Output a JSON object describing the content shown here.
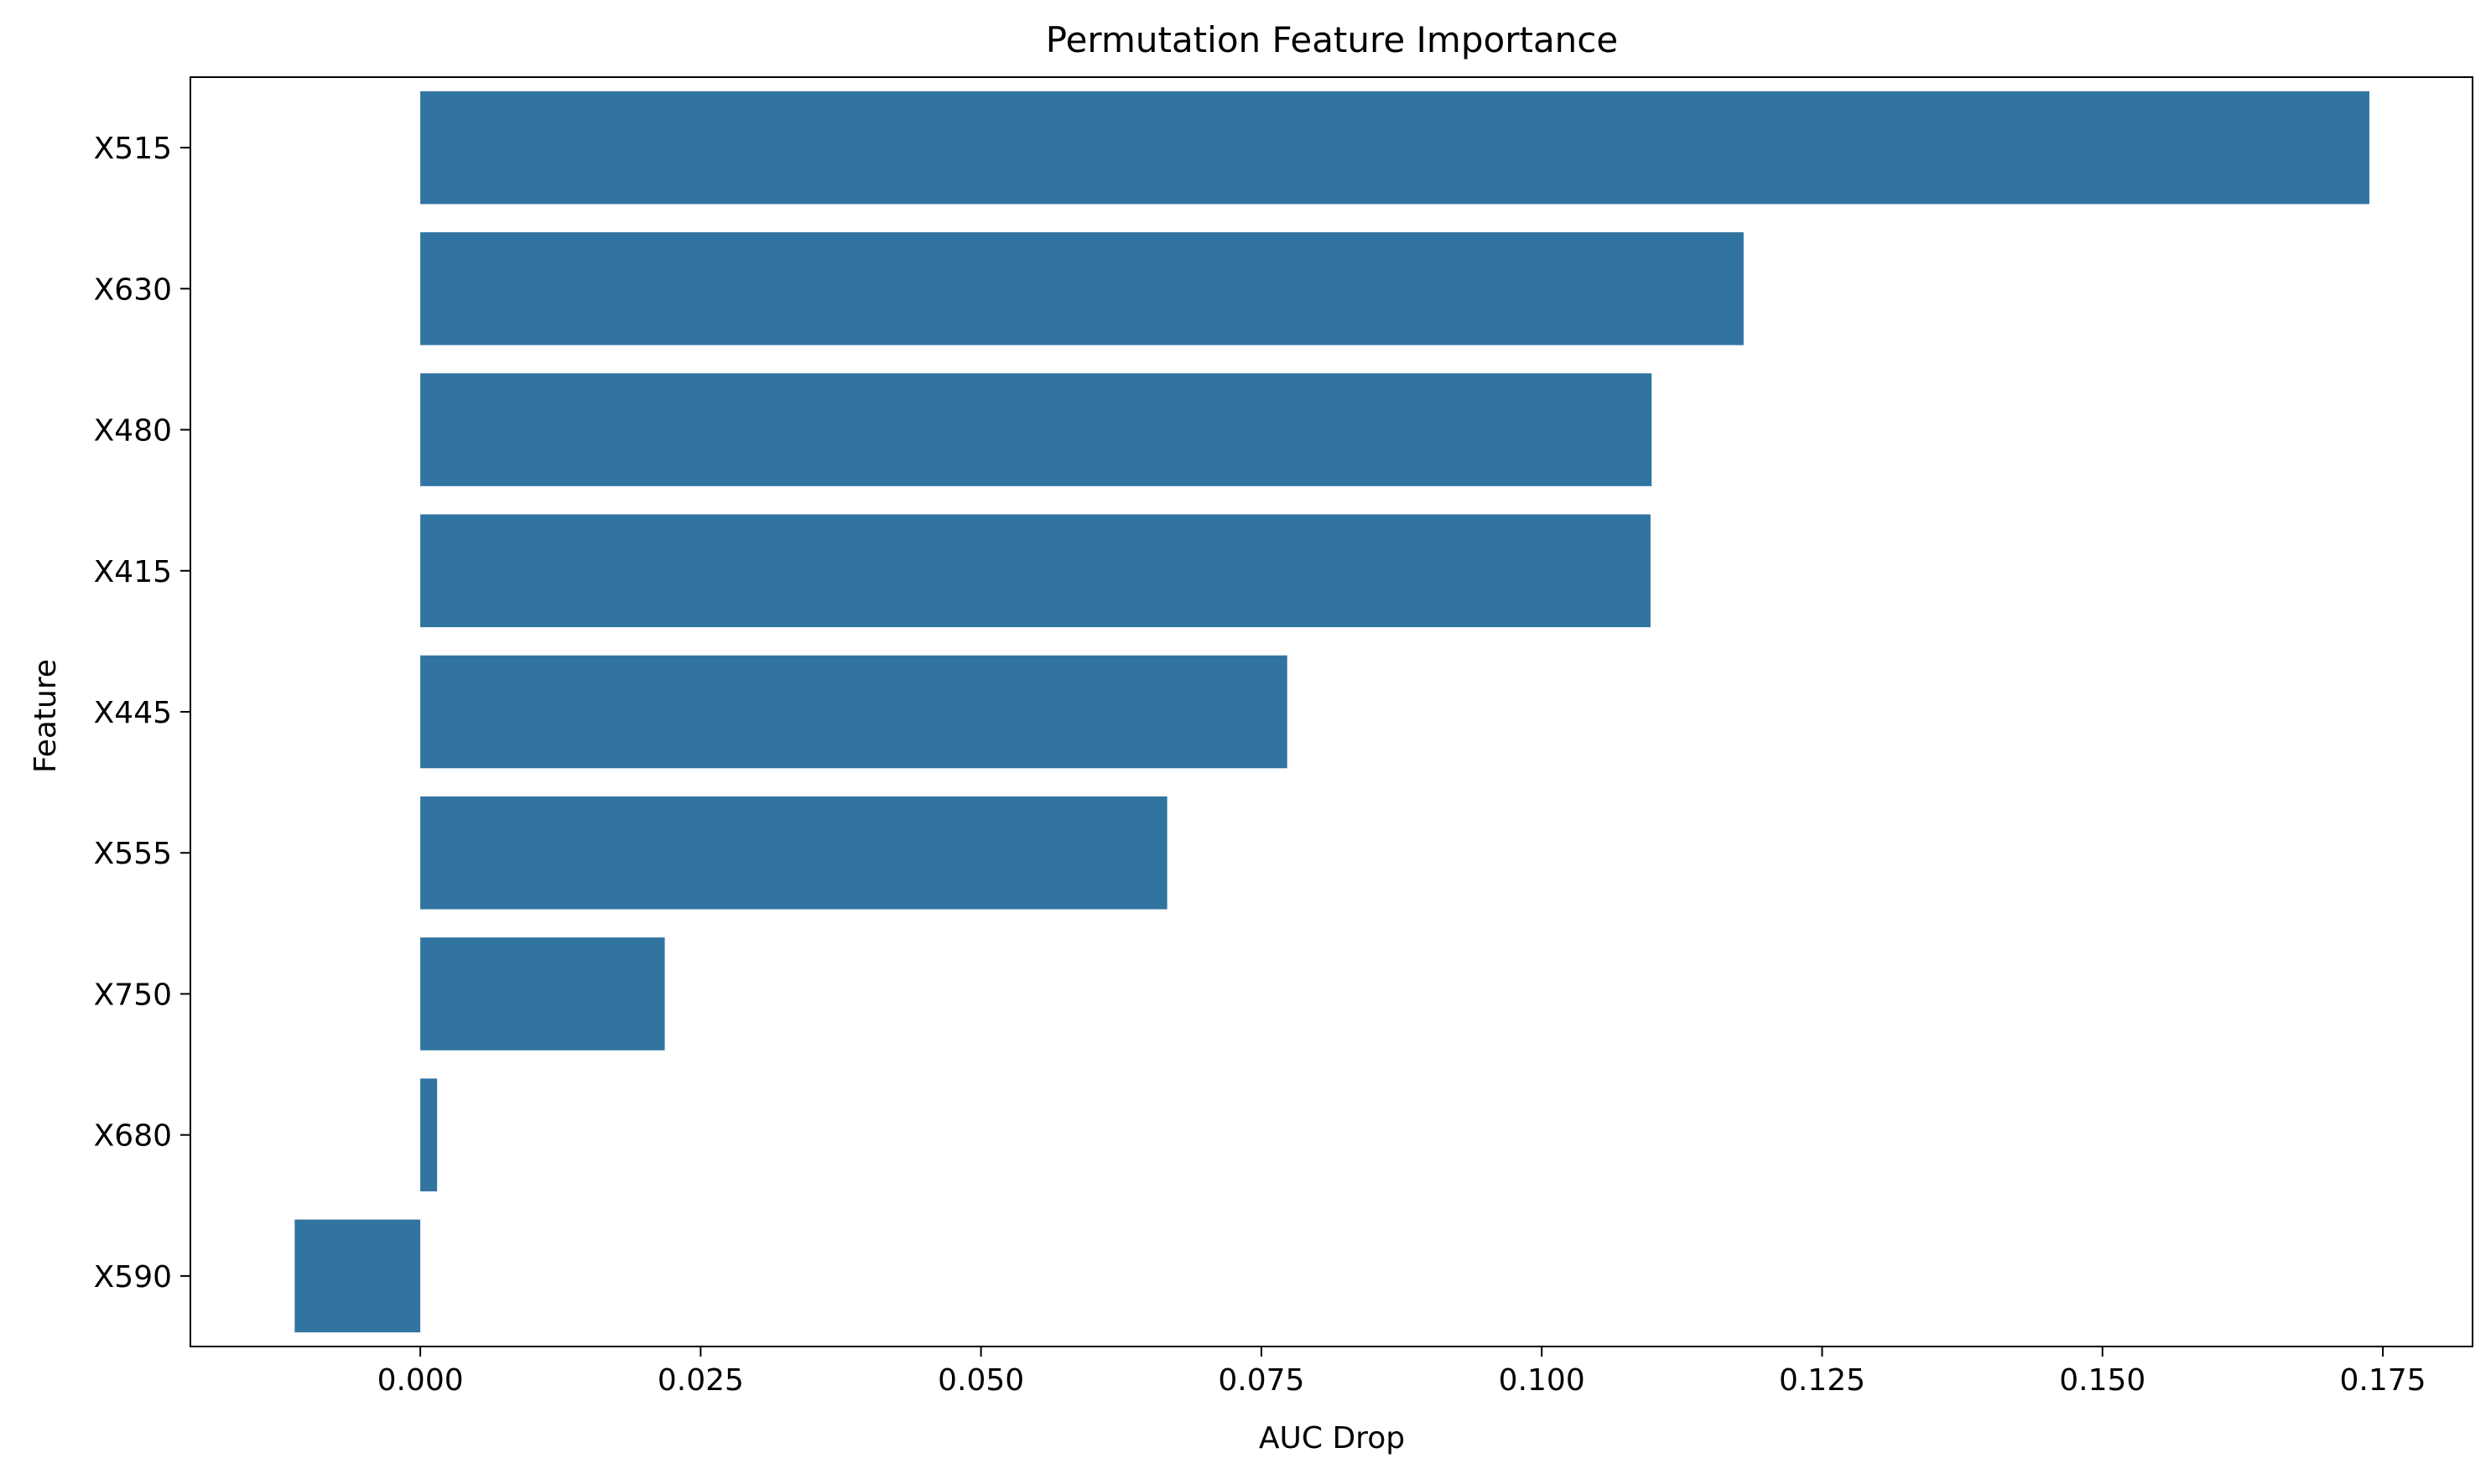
{
  "chart_data": {
    "type": "bar",
    "orientation": "horizontal",
    "title": "Permutation Feature Importance",
    "xlabel": "AUC Drop",
    "ylabel": "Feature",
    "categories": [
      "X515",
      "X630",
      "X480",
      "X415",
      "X445",
      "X555",
      "X750",
      "X680",
      "X590"
    ],
    "values": [
      0.1738,
      0.118,
      0.1098,
      0.1097,
      0.0773,
      0.0666,
      0.0218,
      0.0015,
      -0.0112
    ],
    "xlim": [
      -0.0205,
      0.183
    ],
    "xticks": [
      0.0,
      0.025,
      0.05,
      0.075,
      0.1,
      0.125,
      0.15,
      0.175
    ],
    "xtick_labels": [
      "0.000",
      "0.025",
      "0.050",
      "0.075",
      "0.100",
      "0.125",
      "0.150",
      "0.175"
    ],
    "grid": false,
    "bar_color": "#3274a1"
  }
}
